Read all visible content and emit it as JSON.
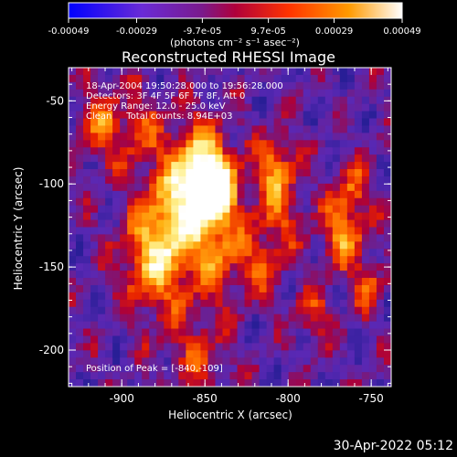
{
  "chart_data": {
    "type": "heatmap",
    "title": "Reconstructed RHESSI Image",
    "xlabel": "Heliocentric X (arcsec)",
    "ylabel": "Heliocentric Y (arcsec)",
    "xlim": [
      -932,
      -738
    ],
    "ylim": [
      -222,
      -30
    ],
    "x_ticks": [
      -900,
      -850,
      -800,
      -750
    ],
    "y_ticks": [
      -50,
      -100,
      -150,
      -200
    ],
    "colorbar": {
      "label": "(photons cm⁻² s⁻¹ asec⁻²)",
      "range": [
        -0.00049,
        0.00049
      ],
      "tick_labels": [
        "-0.00049",
        "-0.00029",
        "-9.7e-05",
        "9.7e-05",
        "0.00029",
        "0.00049"
      ]
    },
    "annotations": [
      "18-Apr-2004 19:50:28.000 to 19:56:28.000",
      "Detectors: 3F 4F 5F 6F 7F 8F, Att 0",
      "Energy Range: 12.0 - 25.0 keV",
      "Clean     Total counts: 8.94E+03"
    ],
    "peak_label": "Position of Peak = [-840,-109]",
    "peak": {
      "x": -840,
      "y": -109
    },
    "x_tick_labels": [
      "-900",
      "-850",
      "-800",
      "-750"
    ],
    "y_tick_labels": [
      "-50",
      "-100",
      "-150",
      "-200"
    ]
  },
  "footer": {
    "timestamp": "30-Apr-2022 05:12"
  },
  "colors": {
    "background": "#000000",
    "foreground": "#ffffff",
    "heatmap_low": "#6a2bb0",
    "heatmap_high": "#ffffff"
  }
}
